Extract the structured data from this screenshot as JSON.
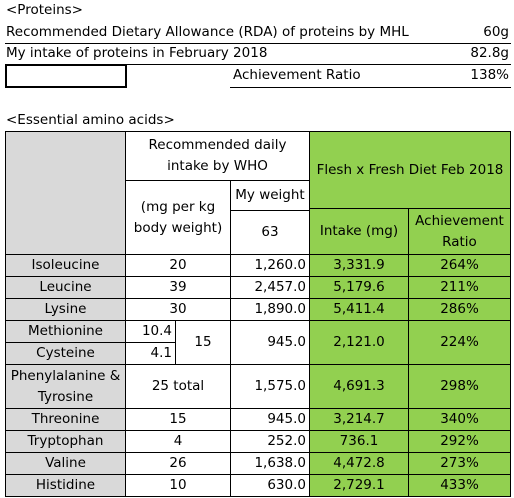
{
  "proteins": {
    "title": "<Proteins>",
    "rows": [
      {
        "label": "Recommended Dietary Allowance (RDA) of proteins by MHL",
        "value": "60g"
      },
      {
        "label": "My intake of proteins in February 2018",
        "value": "82.8g"
      }
    ],
    "ratio_label": "Achievement Ratio",
    "ratio_value": "138%"
  },
  "amino_acids": {
    "title": "<Essential amino acids>",
    "header": {
      "who": "Recommended daily intake by WHO",
      "per_kg": "(mg per kg body weight)",
      "my_weight": "My weight",
      "weight_value": "63",
      "diet": "Flesh x Fresh Diet Feb 2018",
      "intake": "Intake (mg)",
      "ratio": "Achievement Ratio"
    },
    "rows": [
      {
        "name": "Isoleucine",
        "recommended": "20",
        "weight": "1,260.0",
        "intake": "3,331.9",
        "ratio": "264%"
      },
      {
        "name": "Leucine",
        "recommended": "39",
        "weight": "2,457.0",
        "intake": "5,179.6",
        "ratio": "211%"
      },
      {
        "name": "Lysine",
        "recommended": "30",
        "weight": "1,890.0",
        "intake": "5,411.4",
        "ratio": "286%"
      },
      {
        "group": [
          {
            "name": "Methionine",
            "recommended": "10.4"
          },
          {
            "name": "Cysteine",
            "recommended": "4.1"
          }
        ],
        "recommended": "15",
        "weight": "945.0",
        "intake": "2,121.0",
        "ratio": "224%"
      },
      {
        "name": "Phenylalanine & Tyrosine",
        "recommended": "25 total",
        "weight": "1,575.0",
        "intake": "4,691.3",
        "ratio": "298%"
      },
      {
        "name": "Threonine",
        "recommended": "15",
        "weight": "945.0",
        "intake": "3,214.7",
        "ratio": "340%"
      },
      {
        "name": "Tryptophan",
        "recommended": "4",
        "weight": "252.0",
        "intake": "736.1",
        "ratio": "292%"
      },
      {
        "name": "Valine",
        "recommended": "26",
        "weight": "1,638.0",
        "intake": "4,472.8",
        "ratio": "273%"
      },
      {
        "name": "Histidine",
        "recommended": "10",
        "weight": "630.0",
        "intake": "2,729.1",
        "ratio": "433%"
      }
    ]
  }
}
